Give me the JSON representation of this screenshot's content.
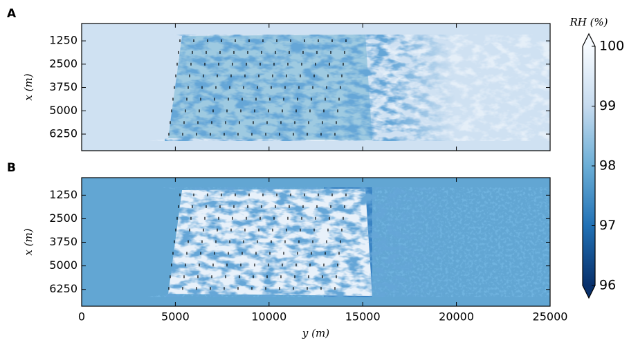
{
  "chart_data": [
    {
      "type": "heatmap",
      "panel_label": "A",
      "ylabel": "x (m)",
      "xlim": [
        0,
        25000
      ],
      "xticks": [
        0,
        5000,
        10000,
        15000,
        20000,
        25000
      ],
      "ylim": [
        7140,
        320
      ],
      "yticks": [
        1250,
        2500,
        3750,
        5000,
        6250
      ]
    },
    {
      "type": "heatmap",
      "panel_label": "B",
      "ylabel": "x (m)",
      "xlabel": "y (m)",
      "xlim": [
        0,
        25000
      ],
      "xticks": [
        0,
        5000,
        10000,
        15000,
        20000,
        25000
      ],
      "ylim": [
        7140,
        320
      ],
      "yticks": [
        1250,
        2500,
        3750,
        5000,
        6250
      ]
    }
  ],
  "colorbar": {
    "label": "RH (%)",
    "lim": [
      96,
      100
    ],
    "ticks": [
      96,
      97,
      98,
      99,
      100
    ],
    "colormap": [
      "#08306b",
      "#2171b5",
      "#6baed6",
      "#c6dbef",
      "#f7fbff"
    ]
  }
}
